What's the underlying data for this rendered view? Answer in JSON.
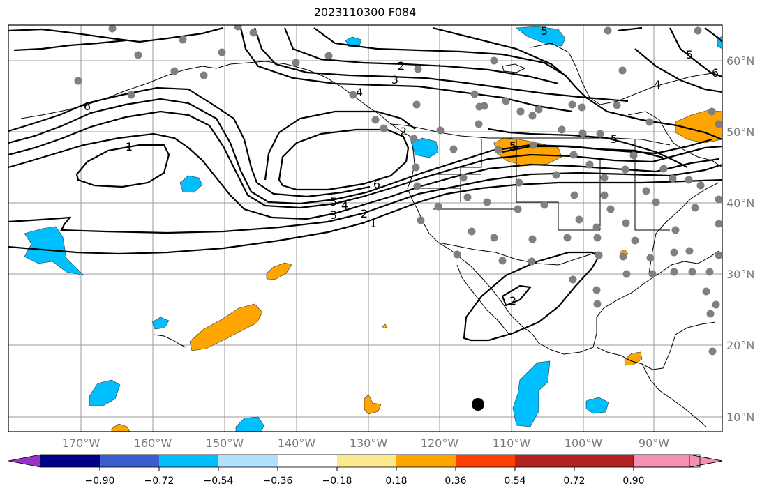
{
  "title": "2023110300 F084",
  "map": {
    "lon_labels": [
      "170°W",
      "160°W",
      "150°W",
      "140°W",
      "130°W",
      "120°W",
      "110°W",
      "100°W",
      "90°W"
    ],
    "lat_labels": [
      "60°N",
      "50°N",
      "40°N",
      "30°N",
      "20°N",
      "10°N"
    ],
    "contour_labels": [
      "1",
      "2",
      "3",
      "4",
      "5",
      "6",
      "1",
      "2",
      "3",
      "4",
      "5",
      "6",
      "2",
      "5",
      "6",
      "5",
      "4",
      "5",
      "2"
    ]
  },
  "colorbar": {
    "ticks": [
      "−0.90",
      "−0.72",
      "−0.54",
      "−0.36",
      "−0.18",
      "0.18",
      "0.36",
      "0.54",
      "0.72",
      "0.90"
    ],
    "colors": [
      "#9932cc",
      "#00008b",
      "#3a5fcd",
      "#00bfff",
      "#b0e2ff",
      "#ffffff",
      "#fce98d",
      "#ffa500",
      "#ff4000",
      "#b22222",
      "#f78fb3"
    ]
  },
  "colors": {
    "negative_fill": "#00bfff",
    "positive_fill": "#ffa500",
    "station": "#808080"
  }
}
